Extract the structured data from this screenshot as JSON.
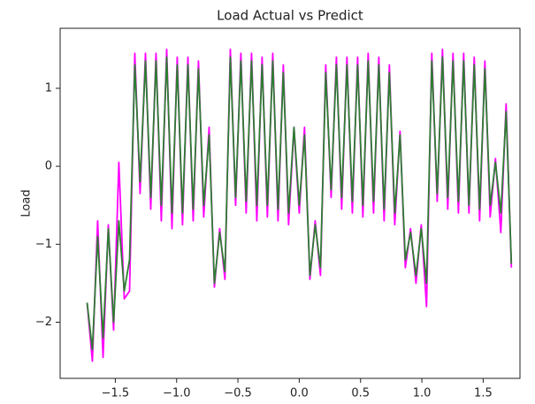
{
  "chart_data": {
    "type": "line",
    "title": "Load Actual vs Predict",
    "y_label": "Load",
    "x": [
      -1.73,
      -1.687,
      -1.644,
      -1.6,
      -1.557,
      -1.514,
      -1.471,
      -1.427,
      -1.384,
      -1.341,
      -1.298,
      -1.254,
      -1.211,
      -1.168,
      -1.125,
      -1.081,
      -1.038,
      -0.995,
      -0.952,
      -0.908,
      -0.865,
      -0.822,
      -0.779,
      -0.735,
      -0.692,
      -0.649,
      -0.606,
      -0.562,
      -0.519,
      -0.476,
      -0.433,
      -0.389,
      -0.346,
      -0.303,
      -0.26,
      -0.216,
      -0.173,
      -0.13,
      -0.087,
      -0.043,
      0.0,
      0.043,
      0.087,
      0.13,
      0.173,
      0.216,
      0.26,
      0.303,
      0.346,
      0.389,
      0.433,
      0.476,
      0.519,
      0.562,
      0.606,
      0.649,
      0.692,
      0.735,
      0.779,
      0.822,
      0.865,
      0.908,
      0.952,
      0.995,
      1.038,
      1.081,
      1.125,
      1.168,
      1.211,
      1.254,
      1.298,
      1.341,
      1.384,
      1.427,
      1.471,
      1.514,
      1.557,
      1.6,
      1.644,
      1.687,
      1.73
    ],
    "series": [
      {
        "color": "#ff00ff",
        "values": [
          -1.75,
          -2.5,
          -0.7,
          -2.45,
          -0.75,
          -2.1,
          0.05,
          -1.7,
          -1.6,
          1.45,
          -0.35,
          1.45,
          -0.55,
          1.45,
          -0.7,
          1.5,
          -0.8,
          1.4,
          -0.75,
          1.4,
          -0.7,
          1.35,
          -0.65,
          0.5,
          -1.55,
          -0.8,
          -1.45,
          1.5,
          -0.5,
          1.45,
          -0.6,
          1.45,
          -0.7,
          1.4,
          -0.65,
          1.45,
          -0.7,
          1.3,
          -0.75,
          0.5,
          -0.6,
          0.5,
          -1.45,
          -0.7,
          -1.4,
          1.3,
          -0.4,
          1.4,
          -0.55,
          1.4,
          -0.6,
          1.4,
          -0.65,
          1.45,
          -0.6,
          1.4,
          -0.7,
          1.3,
          -0.75,
          0.45,
          -1.3,
          -0.8,
          -1.5,
          -0.75,
          -1.8,
          1.45,
          -0.45,
          1.5,
          -0.55,
          1.45,
          -0.6,
          1.45,
          -0.6,
          1.4,
          -0.7,
          1.35,
          -0.65,
          0.1,
          -0.85,
          0.8,
          -1.3
        ]
      },
      {
        "color": "#2e7d32",
        "values": [
          -1.75,
          -2.35,
          -0.9,
          -2.2,
          -0.8,
          -2.0,
          -0.7,
          -1.6,
          -1.2,
          1.3,
          -0.2,
          1.35,
          -0.4,
          1.35,
          -0.5,
          1.4,
          -0.6,
          1.3,
          -0.6,
          1.3,
          -0.55,
          1.25,
          -0.5,
          0.4,
          -1.5,
          -0.85,
          -1.35,
          1.4,
          -0.4,
          1.35,
          -0.45,
          1.35,
          -0.5,
          1.3,
          -0.5,
          1.35,
          -0.55,
          1.2,
          -0.6,
          0.5,
          -0.5,
          0.4,
          -1.4,
          -0.75,
          -1.3,
          1.2,
          -0.3,
          1.3,
          -0.4,
          1.3,
          -0.45,
          1.3,
          -0.5,
          1.35,
          -0.45,
          1.3,
          -0.55,
          1.2,
          -0.6,
          0.4,
          -1.2,
          -0.85,
          -1.4,
          -0.8,
          -1.5,
          1.35,
          -0.35,
          1.4,
          -0.4,
          1.35,
          -0.45,
          1.35,
          -0.5,
          1.3,
          -0.55,
          1.25,
          -0.5,
          0.05,
          -0.6,
          0.7,
          -1.25
        ]
      }
    ],
    "xlim": [
      -1.95,
      1.8
    ],
    "ylim": [
      -2.72,
      1.77
    ],
    "xticks": [
      {
        "value": -1.5,
        "label": "−1.5"
      },
      {
        "value": -1.0,
        "label": "−1.0"
      },
      {
        "value": -0.5,
        "label": "−0.5"
      },
      {
        "value": 0.0,
        "label": "0.0"
      },
      {
        "value": 0.5,
        "label": "0.5"
      },
      {
        "value": 1.0,
        "label": "1.0"
      },
      {
        "value": 1.5,
        "label": "1.5"
      }
    ],
    "yticks": [
      {
        "value": -2,
        "label": "−2"
      },
      {
        "value": -1,
        "label": "−1"
      },
      0,
      1
    ],
    "grid": false
  }
}
